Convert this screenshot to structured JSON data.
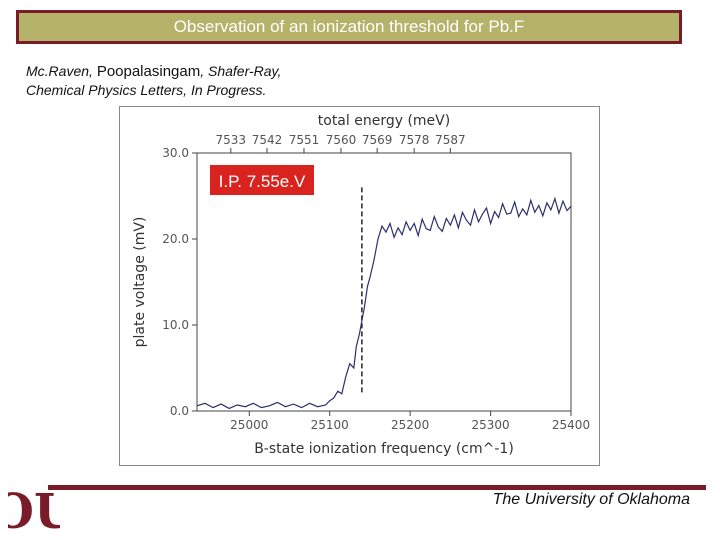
{
  "slide": {
    "title": "Observation of an ionization threshold for Pb.F",
    "citation": {
      "authors_pre": "Mc.Raven, ",
      "author_highlight": "Poopalasingam",
      "authors_post": ", Shafer-Ray,",
      "journal": "Chemical Physics Letters, In Progress."
    },
    "footer": "The University of Oklahoma",
    "logo_text": "OU"
  },
  "colors": {
    "maroon": "#7a1b2a",
    "title_fill": "#b5b26a",
    "line": "#2b2f6e",
    "annotation_bg": "#d8231f"
  },
  "chart_data": {
    "type": "line",
    "title": "",
    "xlabel": "B-state ionization frequency (cm^-1)",
    "ylabel": "plate voltage (mV)",
    "top_xlabel": "total energy (meV)",
    "xlim": [
      24935,
      25400
    ],
    "ylim": [
      0,
      30
    ],
    "xticks": [
      25000,
      25100,
      25200,
      25300,
      25400
    ],
    "yticks": [
      0,
      10,
      20,
      30
    ],
    "ytick_labels": [
      "0.0",
      "10.0",
      "20.0",
      "30.0"
    ],
    "top_ticks": [
      {
        "label": "7533",
        "x_cm": 24977
      },
      {
        "label": "7542",
        "x_cm": 25022
      },
      {
        "label": "7551",
        "x_cm": 25068
      },
      {
        "label": "7560",
        "x_cm": 25114
      },
      {
        "label": "7569",
        "x_cm": 25159
      },
      {
        "label": "7578",
        "x_cm": 25205
      },
      {
        "label": "7587",
        "x_cm": 25250
      }
    ],
    "threshold_x": 25140,
    "threshold_yrange": [
      2,
      26
    ],
    "annotation": "I.P. 7.55e.V",
    "grid": false,
    "series": [
      {
        "name": "plate voltage",
        "x": [
          24935,
          24945,
          24955,
          24965,
          24975,
          24985,
          24995,
          25005,
          25015,
          25025,
          25035,
          25045,
          25055,
          25065,
          25075,
          25085,
          25095,
          25100,
          25105,
          25110,
          25115,
          25120,
          25125,
          25130,
          25133,
          25137,
          25140,
          25143,
          25147,
          25150,
          25155,
          25160,
          25165,
          25170,
          25175,
          25180,
          25185,
          25190,
          25195,
          25200,
          25205,
          25210,
          25215,
          25220,
          25225,
          25230,
          25235,
          25240,
          25245,
          25250,
          25255,
          25260,
          25265,
          25270,
          25275,
          25280,
          25285,
          25290,
          25295,
          25300,
          25305,
          25310,
          25315,
          25320,
          25325,
          25330,
          25335,
          25340,
          25345,
          25350,
          25355,
          25360,
          25365,
          25370,
          25375,
          25380,
          25385,
          25390,
          25395,
          25400
        ],
        "y": [
          0.6,
          0.9,
          0.4,
          0.8,
          0.3,
          0.7,
          0.5,
          0.9,
          0.4,
          0.6,
          1.0,
          0.5,
          0.8,
          0.4,
          0.9,
          0.5,
          0.7,
          1.2,
          1.5,
          2.3,
          2.0,
          4.0,
          5.5,
          5.0,
          7.5,
          9.0,
          10.5,
          12.0,
          14.5,
          15.5,
          17.5,
          20.0,
          21.5,
          20.8,
          21.8,
          20.2,
          21.3,
          20.5,
          22.0,
          21.0,
          21.8,
          20.4,
          22.3,
          21.2,
          21.0,
          22.6,
          21.4,
          20.9,
          22.4,
          21.6,
          22.8,
          21.3,
          23.1,
          22.2,
          21.6,
          23.4,
          22.0,
          22.9,
          23.6,
          21.8,
          23.2,
          22.5,
          24.1,
          22.9,
          23.0,
          24.3,
          22.6,
          23.5,
          22.8,
          24.5,
          23.1,
          23.9,
          22.7,
          24.2,
          23.4,
          24.7,
          23.0,
          24.4,
          23.3,
          23.8
        ]
      }
    ]
  }
}
